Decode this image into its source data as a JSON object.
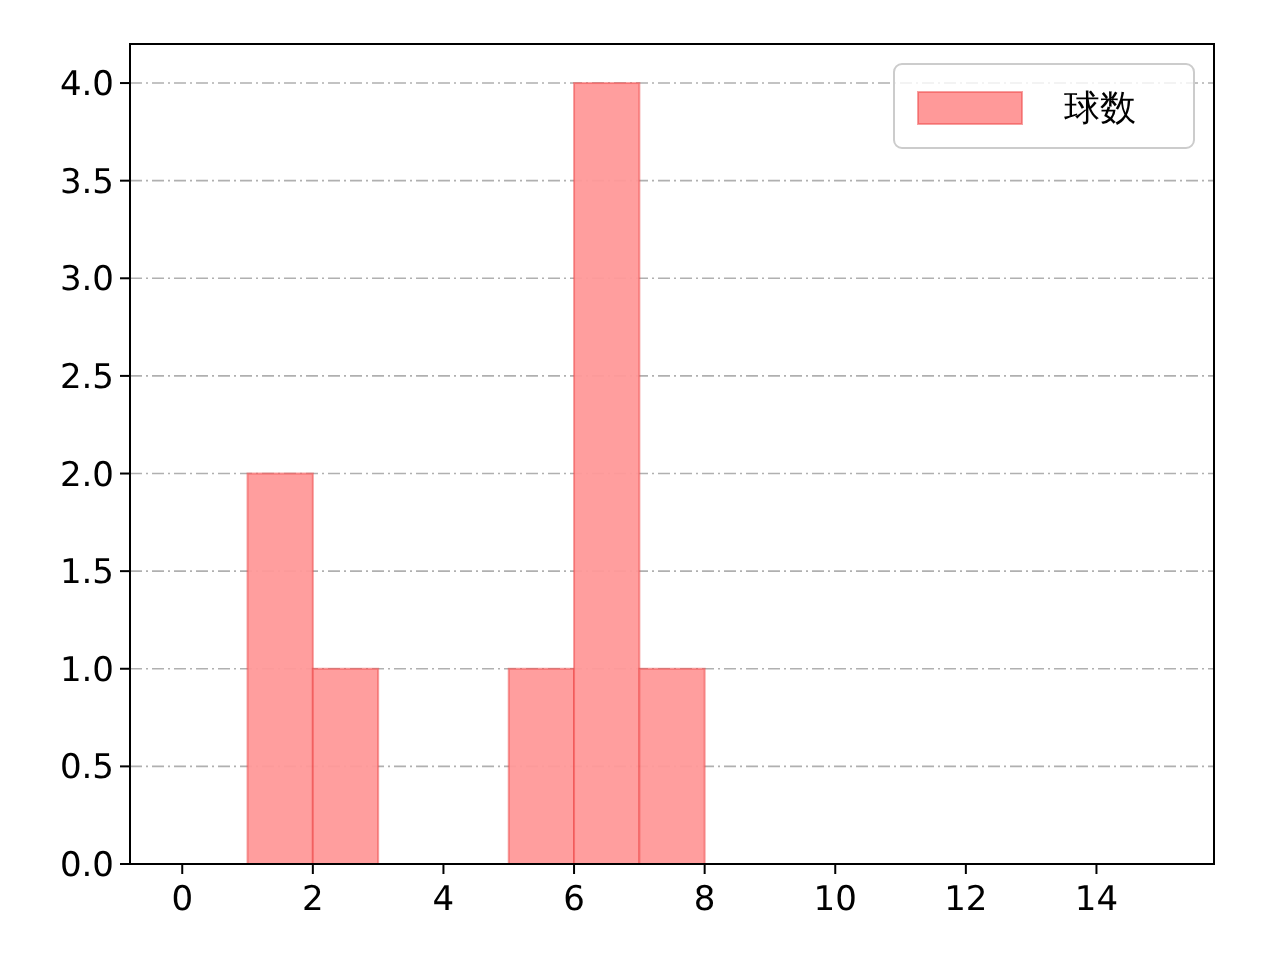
{
  "chart_data": {
    "type": "histogram",
    "bins": [
      1,
      2,
      3,
      4,
      5,
      6,
      7,
      8
    ],
    "series": [
      {
        "name": "球数",
        "color": "#ff9999",
        "values": [
          2,
          1,
          0,
          0,
          1,
          4,
          1
        ]
      }
    ],
    "xlim": [
      -0.8,
      15.8
    ],
    "xticks": [
      0,
      2,
      4,
      6,
      8,
      10,
      12,
      14
    ],
    "ylim": [
      0,
      4.2
    ],
    "yticks": [
      {
        "value": 0,
        "label": "0.0"
      },
      {
        "value": 0.5,
        "label": "0.5"
      },
      {
        "value": 1,
        "label": "1.0"
      },
      {
        "value": 1.5,
        "label": "1.5"
      },
      {
        "value": 2,
        "label": "2.0"
      },
      {
        "value": 2.5,
        "label": "2.5"
      },
      {
        "value": 3,
        "label": "3.0"
      },
      {
        "value": 3.5,
        "label": "3.5"
      },
      {
        "value": 4,
        "label": "4.0"
      }
    ],
    "grid": "y",
    "legend": "top right"
  }
}
